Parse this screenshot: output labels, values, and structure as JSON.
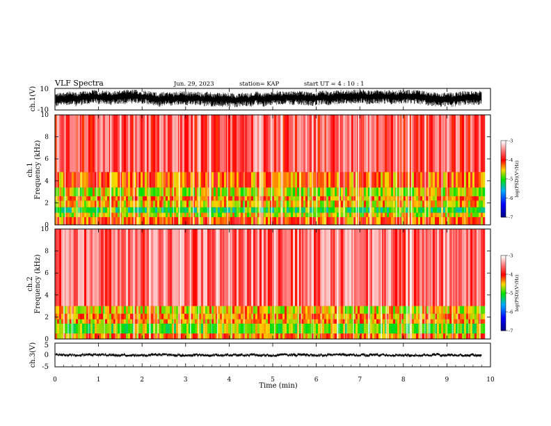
{
  "header": {
    "title": "VLF Spectra",
    "date": "Jun. 29, 2023",
    "station": "station= KAP",
    "start": "start  UT =   4 : 10 : 1"
  },
  "colors": {
    "high": "#ff0000",
    "mid_high": "#ffd000",
    "mid": "#00e000",
    "low": "#0000ff",
    "lowest": "#000080",
    "trace": "#000000"
  },
  "chart_data": [
    {
      "type": "line",
      "panel": "ch1-waveform",
      "ylabel": "ch.1(V)",
      "xlim": [
        0,
        10
      ],
      "ylim": [
        -10,
        10
      ],
      "yticklabels": [
        "10",
        "-10"
      ],
      "data_extent_min": 9.8,
      "amplitude_range": [
        -7,
        6
      ],
      "trace_color": "#000000"
    },
    {
      "type": "heatmap",
      "panel": "ch1-spectrogram",
      "ylabel": "ch.1\nFrequency (kHz)",
      "ylabel_lines": [
        "ch.1",
        "Frequency (kHz)"
      ],
      "xlim": [
        0,
        10
      ],
      "ylim": [
        0,
        10
      ],
      "yticklabels": [
        "0",
        "2",
        "4",
        "6",
        "8",
        "10"
      ],
      "colorbar": {
        "label": "log(PSD)(V²/Hz)",
        "range": [
          -7,
          -3
        ],
        "ticks": [
          "-3",
          "-4",
          "-5",
          "-6",
          "-7"
        ]
      },
      "bands_khz": [
        {
          "from": 0.0,
          "to": 0.7,
          "level": -4.2
        },
        {
          "from": 0.7,
          "to": 1.1,
          "level": -4.6
        },
        {
          "from": 1.1,
          "to": 1.6,
          "level": -5.0
        },
        {
          "from": 1.6,
          "to": 2.2,
          "level": -4.5
        },
        {
          "from": 2.2,
          "to": 2.6,
          "level": -4.3
        },
        {
          "from": 2.6,
          "to": 3.4,
          "level": -4.6
        },
        {
          "from": 3.4,
          "to": 4.8,
          "level": -4.2
        },
        {
          "from": 4.8,
          "to": 10.0,
          "level": -3.7
        }
      ]
    },
    {
      "type": "heatmap",
      "panel": "ch2-spectrogram",
      "ylabel": "ch.2\nFrequency (kHz)",
      "ylabel_lines": [
        "ch.2",
        "Frequency (kHz)"
      ],
      "xlim": [
        0,
        10
      ],
      "ylim": [
        0,
        10
      ],
      "yticklabels": [
        "0",
        "2",
        "4",
        "6",
        "8",
        "10"
      ],
      "colorbar": {
        "label": "log(PSD)(V²/Hz)",
        "range": [
          -7,
          -3
        ],
        "ticks": [
          "-3",
          "-4",
          "-5",
          "-6",
          "-7"
        ]
      },
      "bands_khz": [
        {
          "from": 0.0,
          "to": 0.5,
          "level": -4.3
        },
        {
          "from": 0.5,
          "to": 1.4,
          "level": -4.8
        },
        {
          "from": 1.4,
          "to": 1.8,
          "level": -4.4
        },
        {
          "from": 1.8,
          "to": 2.3,
          "level": -4.3
        },
        {
          "from": 2.3,
          "to": 3.0,
          "level": -4.5
        },
        {
          "from": 3.0,
          "to": 10.0,
          "level": -3.6
        }
      ]
    },
    {
      "type": "line",
      "panel": "ch3-waveform",
      "ylabel": "ch.3(V)",
      "xlim": [
        0,
        10
      ],
      "ylim": [
        -5,
        5
      ],
      "yticklabels": [
        "5",
        "0",
        "-5"
      ],
      "data_extent_min": 9.8,
      "amplitude_range": [
        -0.6,
        0.6
      ],
      "trace_color": "#000000"
    }
  ],
  "xaxis": {
    "label": "Time (min)",
    "ticklabels": [
      "0",
      "1",
      "2",
      "3",
      "4",
      "5",
      "6",
      "7",
      "8",
      "9",
      "10"
    ]
  }
}
